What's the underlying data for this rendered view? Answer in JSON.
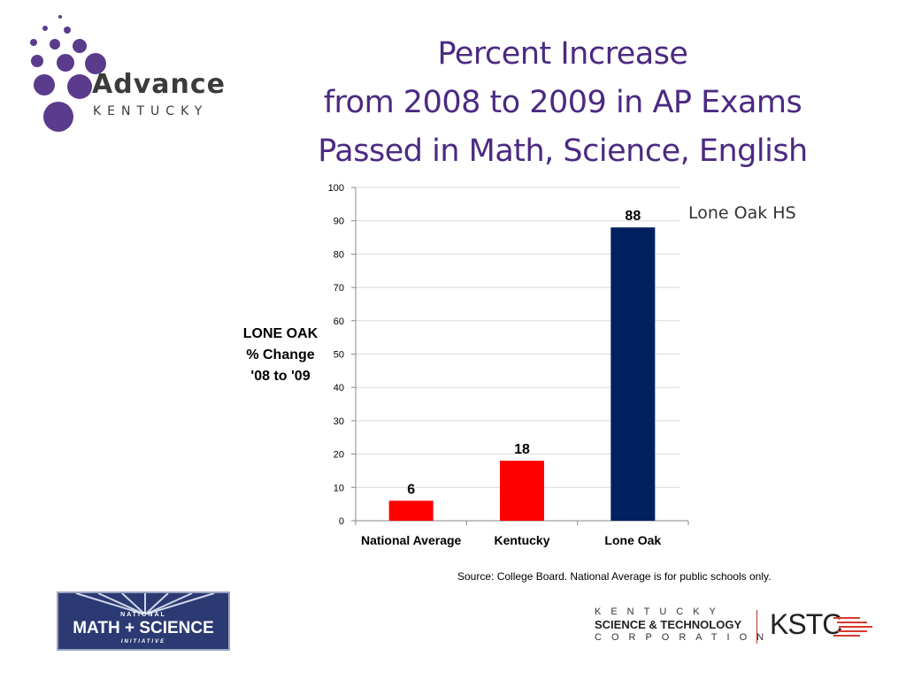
{
  "logo": {
    "name": "Advance",
    "sub": "KENTUCKY",
    "dot_color": "#5b3b8c"
  },
  "title": {
    "line1": "Percent Increase",
    "line2": "from 2008 to 2009 in AP Exams",
    "line3": "Passed in Math, Science, English"
  },
  "chart_data": {
    "type": "bar",
    "categories": [
      "National Average",
      "Kentucky",
      "Lone Oak"
    ],
    "values": [
      6,
      18,
      88
    ],
    "bar_colors": [
      "#ff0000",
      "#ff0000",
      "#002060"
    ],
    "data_labels": [
      "6",
      "18",
      "88"
    ],
    "ylabel": "LONE OAK\n% Change\n'08 to '09",
    "ylim": [
      0,
      100
    ],
    "yticks": [
      0,
      10,
      20,
      30,
      40,
      50,
      60,
      70,
      80,
      90,
      100
    ],
    "grid": true,
    "annotation": "Lone Oak HS"
  },
  "source": "Source: College Board. National Average is for public schools only.",
  "footer": {
    "nmsi": {
      "top": "NATIONAL",
      "main": "MATH + SCIENCE",
      "bottom": "INITIATIVE"
    },
    "kstc": {
      "line1": "KENTUCKY",
      "line2": "SCIENCE & TECHNOLOGY",
      "line3": "CORPORATION",
      "abbr": "KSTC"
    }
  },
  "colors": {
    "title": "#4b2a82",
    "accent_red": "#ff0000",
    "navy": "#002060"
  }
}
